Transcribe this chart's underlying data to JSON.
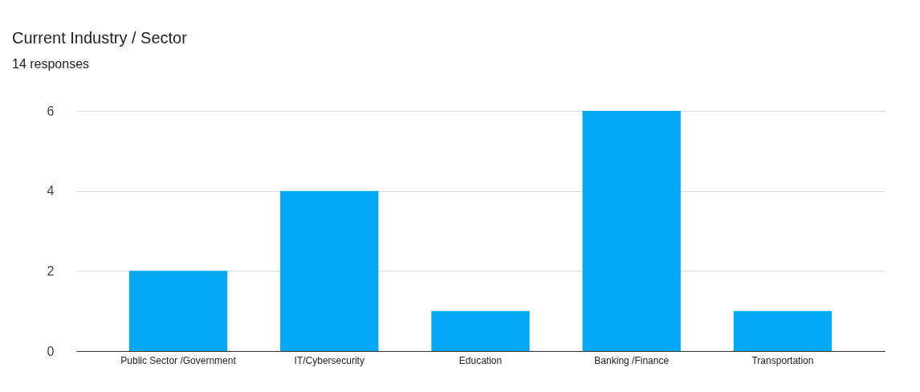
{
  "chart_data": {
    "type": "bar",
    "title": "Current Industry / Sector",
    "subtitle": "14 responses",
    "categories": [
      "Public Sector /Government",
      "IT/Cybersecurity",
      "Education",
      "Banking /Finance",
      "Transportation"
    ],
    "values": [
      2,
      4,
      1,
      6,
      1
    ],
    "color": "#03a9f4",
    "ylim": [
      0,
      6
    ],
    "yticks": [
      0,
      2,
      4,
      6
    ],
    "grid": "y"
  }
}
